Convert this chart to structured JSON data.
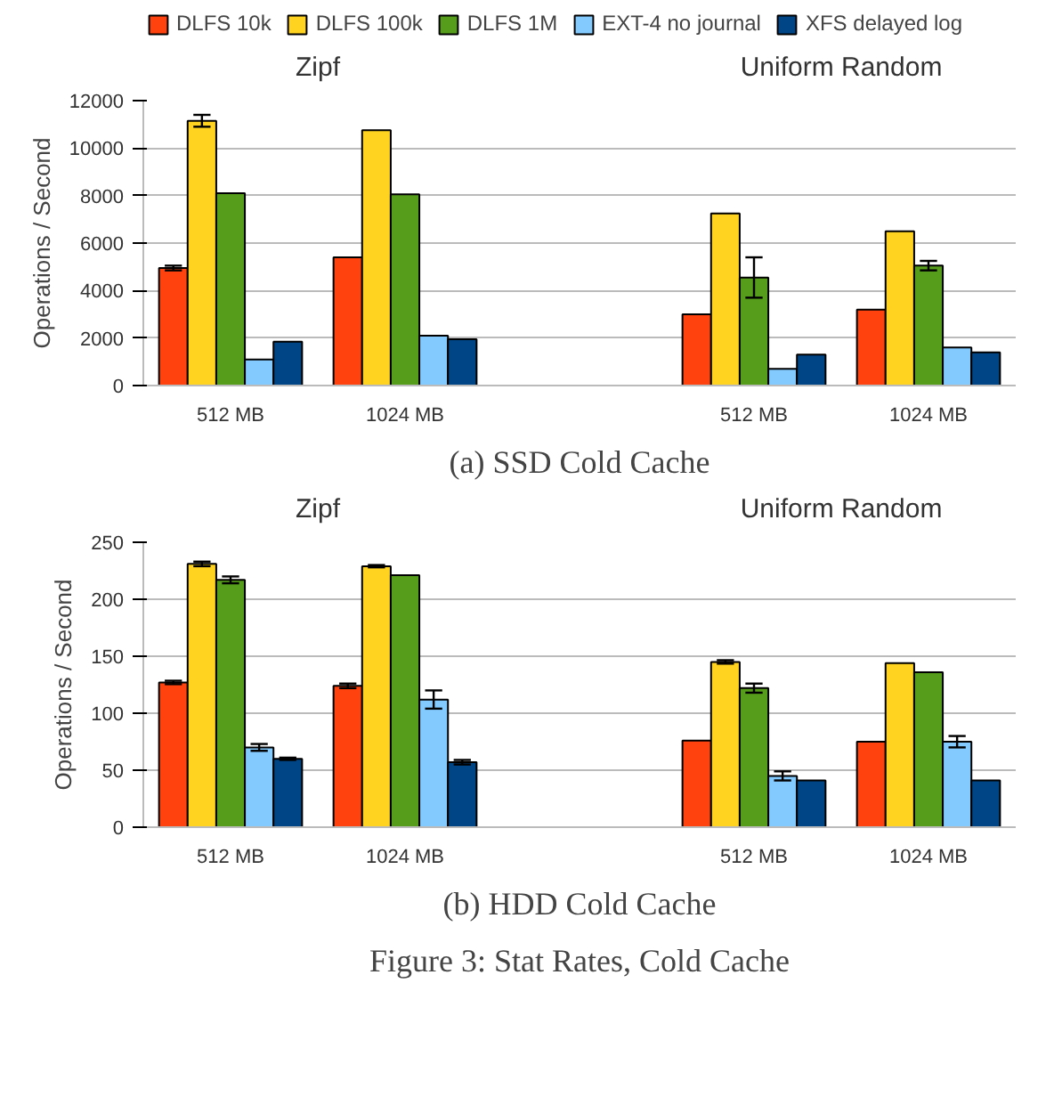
{
  "chart_data": [
    {
      "type": "bar",
      "title": "(a) SSD Cold Cache",
      "ylabel": "Operations / Second",
      "categories": [
        "512 MB",
        "1024 MB",
        null,
        "512 MB",
        "1024 MB"
      ],
      "ylim": [
        0,
        12000
      ],
      "yticks": [
        0,
        2000,
        4000,
        6000,
        8000,
        10000,
        12000
      ],
      "grid": "y",
      "legend": "top",
      "annotations": [
        "Zipf",
        "Uniform Random"
      ],
      "series": [
        {
          "name": "DLFS 10k",
          "color": "#ff420e",
          "values": [
            4950,
            5400,
            null,
            3000,
            3200
          ],
          "errors": [
            100,
            null,
            null,
            null,
            null
          ]
        },
        {
          "name": "DLFS 100k",
          "color": "#ffd320",
          "values": [
            11150,
            10750,
            null,
            7250,
            6500
          ],
          "errors": [
            250,
            null,
            null,
            null,
            null
          ]
        },
        {
          "name": "DLFS 1M",
          "color": "#579d1c",
          "values": [
            8100,
            8050,
            null,
            4550,
            5050
          ],
          "errors": [
            null,
            null,
            null,
            850,
            200
          ]
        },
        {
          "name": "EXT-4 no journal",
          "color": "#83caff",
          "values": [
            1100,
            2100,
            null,
            700,
            1600
          ]
        },
        {
          "name": "XFS delayed log",
          "color": "#004586",
          "values": [
            1850,
            1950,
            null,
            1300,
            1400
          ]
        }
      ]
    },
    {
      "type": "bar",
      "title": "(b) HDD Cold Cache",
      "ylabel": "Operations / Second",
      "categories": [
        "512 MB",
        "1024 MB",
        null,
        "512 MB",
        "1024 MB"
      ],
      "ylim": [
        0,
        250
      ],
      "yticks": [
        0,
        50,
        100,
        150,
        200,
        250
      ],
      "grid": "y",
      "annotations": [
        "Zipf",
        "Uniform Random",
        "Figure 3: Stat Rates, Cold Cache"
      ],
      "series": [
        {
          "color": "#ff420e",
          "values": [
            127,
            124,
            null,
            76,
            75
          ],
          "errors": [
            1.5,
            2,
            null,
            null,
            null
          ]
        },
        {
          "color": "#ffd320",
          "values": [
            231,
            229,
            null,
            145,
            144
          ],
          "errors": [
            2,
            1,
            null,
            1.5,
            null
          ]
        },
        {
          "color": "#579d1c",
          "values": [
            217,
            221,
            null,
            122,
            136
          ],
          "errors": [
            3,
            null,
            null,
            4,
            null
          ]
        },
        {
          "color": "#83caff",
          "values": [
            70,
            112,
            null,
            45,
            75
          ],
          "errors": [
            3,
            8,
            null,
            4,
            5
          ]
        },
        {
          "color": "#004586",
          "values": [
            60,
            57,
            null,
            41,
            41
          ],
          "errors": [
            1,
            2,
            null,
            null,
            null
          ]
        }
      ]
    }
  ]
}
